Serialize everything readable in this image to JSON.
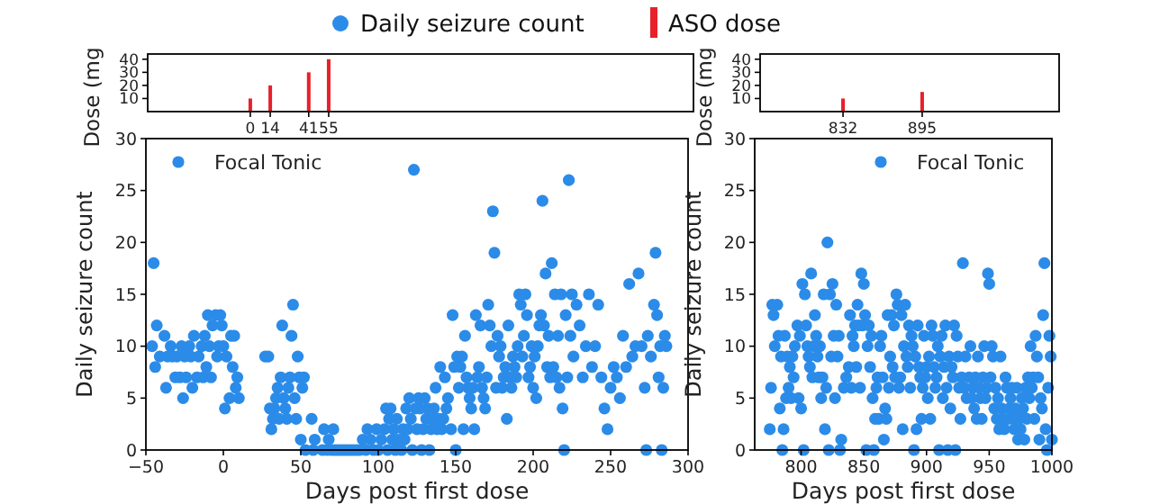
{
  "chart_data": [
    {
      "type": "bar",
      "ylabel": "Dose (mg",
      "x": [
        0,
        14,
        41,
        55
      ],
      "xlim": [
        -72,
        311
      ],
      "xticks": [
        0,
        14,
        41,
        55
      ],
      "ylim": [
        0,
        44
      ],
      "yticks": [
        10,
        20,
        30,
        40
      ],
      "legend": "top",
      "annotations": [
        "Daily seizure count"
      ],
      "series": [
        {
          "name": "ASO dose",
          "color": "#e8202a",
          "values": [
            10,
            20,
            30,
            40
          ]
        }
      ]
    },
    {
      "type": "bar",
      "ylabel": "Dose (mg",
      "x": [
        832,
        895
      ],
      "xlim": [
        766,
        1004
      ],
      "xticks": [
        832,
        895
      ],
      "ylim": [
        0,
        44
      ],
      "yticks": [
        10,
        20,
        30,
        40
      ],
      "series": [
        {
          "color": "#e8202a",
          "values": [
            10,
            15
          ]
        }
      ]
    },
    {
      "type": "scatter",
      "xlabel": "Days post first dose",
      "ylabel": "Daily seizure count",
      "xlim": [
        -50,
        300
      ],
      "xticks": [
        {
          "value": -50,
          "label": "−50"
        },
        0,
        50,
        100,
        150,
        200,
        250,
        300
      ],
      "ylim": [
        0,
        30
      ],
      "yticks": [
        0,
        5,
        10,
        15,
        20,
        25,
        30
      ],
      "legend": "top left",
      "marker": "circle",
      "series": [
        {
          "name": "Focal Tonic",
          "color": "#2b8be8",
          "x": [
            -45,
            -46,
            -44,
            -43,
            -41,
            -38,
            -37,
            -36,
            -34,
            -33,
            -31,
            -30,
            -28,
            -27,
            -26,
            -25,
            -24,
            -22,
            -21,
            -20,
            -19,
            -17,
            -16,
            -14,
            -13,
            -12,
            -11,
            -10,
            -9,
            -8,
            -7,
            -5,
            -4,
            -3,
            -2,
            -1,
            0,
            1,
            2,
            4,
            5,
            6,
            7,
            8,
            9,
            10,
            27,
            29,
            30,
            31,
            32,
            33,
            34,
            35,
            36,
            37,
            38,
            39,
            40,
            41,
            42,
            43,
            44,
            45,
            46,
            47,
            48,
            49,
            50,
            51,
            52,
            53,
            57,
            58,
            59,
            64,
            65,
            67,
            68,
            70,
            71,
            72,
            74,
            76,
            78,
            80,
            82,
            84,
            86,
            88,
            90,
            92,
            93,
            95,
            97,
            99,
            100,
            102,
            104,
            105,
            106,
            107,
            108,
            109,
            110,
            111,
            112,
            113,
            115,
            116,
            117,
            118,
            119,
            120,
            121,
            122,
            123,
            124,
            125,
            126,
            127,
            128,
            129,
            130,
            131,
            132,
            133,
            134,
            135,
            136,
            137,
            138,
            139,
            140,
            141,
            142,
            143,
            144,
            145,
            147,
            148,
            149,
            150,
            151,
            152,
            153,
            154,
            155,
            156,
            157,
            158,
            159,
            160,
            161,
            162,
            163,
            164,
            165,
            166,
            167,
            168,
            169,
            170,
            171,
            172,
            173,
            174,
            175,
            176,
            177,
            178,
            179,
            180,
            181,
            182,
            183,
            184,
            185,
            186,
            187,
            188,
            189,
            190,
            191,
            192,
            193,
            194,
            195,
            196,
            197,
            198,
            199,
            200,
            201,
            202,
            203,
            204,
            205,
            206,
            207,
            208,
            209,
            210,
            211,
            212,
            213,
            214,
            215,
            216,
            217,
            218,
            219,
            220,
            221,
            222,
            223,
            224,
            225,
            226,
            228,
            230,
            232,
            234,
            236,
            238,
            240,
            242,
            244,
            246,
            248,
            250,
            252,
            254,
            256,
            258,
            260,
            262,
            264,
            266,
            268,
            270,
            272,
            273,
            274,
            276,
            278,
            279,
            280,
            281,
            282,
            283,
            284,
            285,
            286
          ],
          "values": [
            18,
            10,
            8,
            12,
            9,
            11,
            6,
            9,
            10,
            9,
            7,
            9,
            7,
            10,
            5,
            9,
            7,
            10,
            9,
            6,
            11,
            7,
            9,
            10,
            7,
            11,
            8,
            13,
            10,
            7,
            12,
            13,
            9,
            10,
            13,
            12,
            10,
            4,
            9,
            5,
            11,
            8,
            11,
            6,
            7,
            5,
            9,
            9,
            4,
            2,
            3,
            4,
            5,
            6,
            3,
            7,
            12,
            5,
            4,
            3,
            6,
            7,
            11,
            14,
            5,
            3,
            9,
            7,
            1,
            6,
            7,
            0,
            3,
            0,
            1,
            0,
            2,
            0,
            1,
            0,
            2,
            0,
            0,
            0,
            0,
            0,
            0,
            0,
            0,
            0,
            1,
            0,
            2,
            1,
            0,
            2,
            0,
            1,
            2,
            4,
            0,
            3,
            4,
            1,
            2,
            0,
            3,
            1,
            0,
            2,
            1,
            4,
            2,
            5,
            3,
            0,
            27,
            4,
            2,
            5,
            4,
            0,
            2,
            5,
            3,
            4,
            0,
            2,
            3,
            4,
            6,
            2,
            3,
            8,
            2,
            3,
            7,
            4,
            5,
            2,
            13,
            8,
            0,
            9,
            6,
            8,
            9,
            2,
            11,
            7,
            6,
            5,
            4,
            6,
            2,
            13,
            7,
            8,
            12,
            6,
            5,
            4,
            7,
            14,
            12,
            10,
            23,
            19,
            6,
            11,
            9,
            10,
            6,
            7,
            8,
            3,
            12,
            7,
            6,
            9,
            8,
            7,
            10,
            15,
            14,
            9,
            11,
            15,
            13,
            7,
            8,
            10,
            6,
            9,
            5,
            10,
            12,
            13,
            24,
            12,
            17,
            8,
            11,
            7,
            18,
            8,
            15,
            7,
            11,
            6,
            15,
            4,
            0,
            13,
            7,
            26,
            11,
            15,
            9,
            14,
            12,
            7,
            10,
            15,
            8,
            10,
            14,
            7,
            4,
            2,
            6,
            8,
            7,
            5,
            11,
            8,
            16,
            9,
            10,
            17,
            10,
            6,
            0,
            11,
            9,
            14,
            19,
            13,
            7,
            10,
            0,
            6,
            11,
            10
          ]
        }
      ]
    },
    {
      "type": "scatter",
      "xlabel": "Days post first dose",
      "ylabel": "Daily seizure count",
      "xlim": [
        763,
        1000
      ],
      "xticks": [
        800,
        850,
        900,
        950,
        1000
      ],
      "ylim": [
        0,
        30
      ],
      "yticks": [
        0,
        5,
        10,
        15,
        20,
        25,
        30
      ],
      "legend": "top right",
      "marker": "circle",
      "series": [
        {
          "name": "Focal Tonic",
          "color": "#2b8be8",
          "x": [
            775,
            776,
            777,
            778,
            779,
            781,
            782,
            783,
            784,
            785,
            786,
            787,
            788,
            789,
            790,
            791,
            792,
            793,
            794,
            795,
            797,
            798,
            799,
            800,
            801,
            802,
            803,
            804,
            805,
            806,
            807,
            808,
            809,
            810,
            811,
            812,
            813,
            814,
            815,
            816,
            817,
            818,
            819,
            820,
            821,
            822,
            823,
            824,
            825,
            826,
            827,
            828,
            829,
            830,
            831,
            832,
            834,
            836,
            838,
            839,
            840,
            841,
            842,
            843,
            844,
            845,
            846,
            847,
            848,
            849,
            850,
            851,
            852,
            853,
            854,
            855,
            856,
            857,
            858,
            859,
            860,
            861,
            862,
            863,
            864,
            865,
            866,
            867,
            868,
            869,
            870,
            871,
            872,
            873,
            874,
            875,
            876,
            877,
            878,
            879,
            880,
            881,
            882,
            883,
            884,
            885,
            886,
            887,
            888,
            889,
            890,
            891,
            892,
            893,
            894,
            895,
            896,
            897,
            898,
            899,
            900,
            901,
            902,
            903,
            904,
            905,
            906,
            907,
            908,
            909,
            910,
            911,
            912,
            913,
            914,
            915,
            916,
            917,
            918,
            919,
            920,
            921,
            922,
            923,
            924,
            925,
            926,
            927,
            928,
            929,
            930,
            931,
            932,
            934,
            935,
            936,
            937,
            938,
            939,
            940,
            941,
            942,
            943,
            944,
            945,
            946,
            947,
            948,
            949,
            950,
            951,
            952,
            953,
            954,
            955,
            956,
            957,
            958,
            959,
            960,
            961,
            962,
            963,
            964,
            965,
            966,
            967,
            968,
            969,
            970,
            971,
            972,
            973,
            974,
            975,
            976,
            977,
            978,
            979,
            980,
            981,
            982,
            983,
            984,
            985,
            986,
            987,
            988,
            989,
            990,
            991,
            992,
            993,
            994,
            995,
            996,
            997,
            998,
            999,
            1000
          ],
          "values": [
            2,
            6,
            14,
            13,
            10,
            14,
            11,
            4,
            9,
            0,
            2,
            11,
            5,
            9,
            6,
            8,
            5,
            9,
            7,
            10,
            12,
            5,
            11,
            4,
            16,
            0,
            15,
            12,
            10,
            9,
            8,
            17,
            7,
            10,
            13,
            11,
            9,
            7,
            10,
            5,
            7,
            15,
            2,
            6,
            20,
            0,
            15,
            9,
            16,
            11,
            5,
            14,
            9,
            11,
            0,
            1,
            6,
            7,
            8,
            13,
            6,
            11,
            10,
            12,
            8,
            14,
            12,
            6,
            17,
            12,
            16,
            13,
            0,
            10,
            12,
            8,
            11,
            5,
            0,
            3,
            6,
            7,
            3,
            10,
            11,
            7,
            1,
            4,
            3,
            13,
            6,
            9,
            13,
            8,
            12,
            7,
            15,
            14,
            6,
            7,
            13,
            2,
            10,
            14,
            9,
            8,
            12,
            6,
            11,
            10,
            0,
            9,
            2,
            12,
            8,
            7,
            3,
            6,
            11,
            7,
            8,
            5,
            9,
            3,
            12,
            11,
            8,
            6,
            7,
            10,
            0,
            9,
            11,
            5,
            8,
            12,
            6,
            0,
            9,
            4,
            8,
            7,
            12,
            0,
            11,
            9,
            6,
            3,
            7,
            18,
            6,
            9,
            5,
            7,
            10,
            5,
            6,
            4,
            7,
            3,
            9,
            6,
            5,
            3,
            7,
            10,
            5,
            6,
            17,
            16,
            7,
            10,
            9,
            4,
            6,
            3,
            5,
            2,
            9,
            4,
            3,
            2,
            7,
            6,
            3,
            4,
            5,
            6,
            3,
            2,
            4,
            6,
            1,
            3,
            2,
            5,
            4,
            1,
            6,
            3,
            7,
            5,
            10,
            6,
            7,
            3,
            11,
            9,
            7,
            1,
            5,
            4,
            13,
            18,
            2,
            0,
            6,
            11,
            9,
            1
          ]
        }
      ]
    }
  ]
}
